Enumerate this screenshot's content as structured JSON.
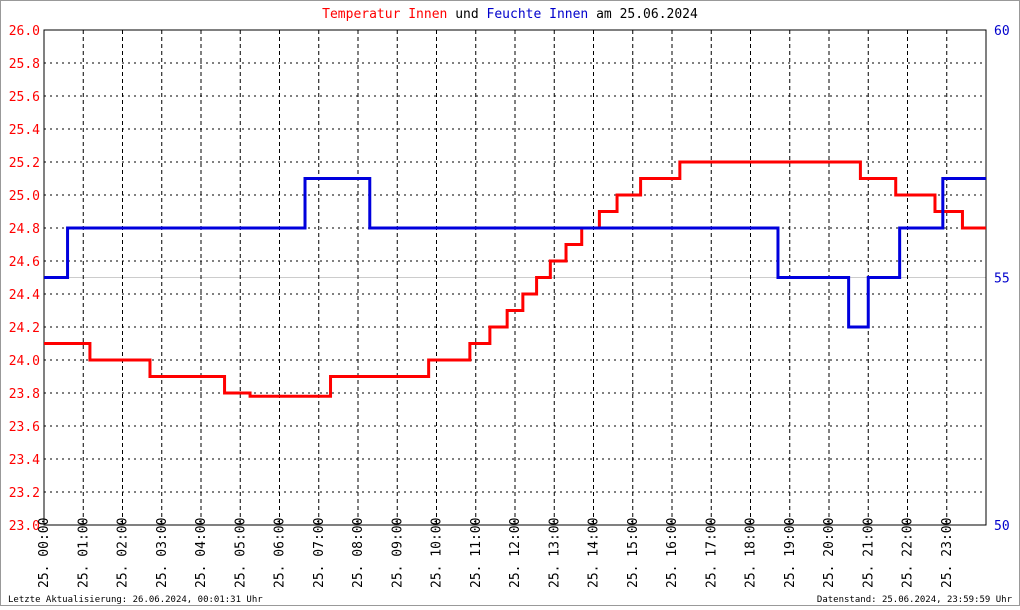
{
  "chart_data": {
    "type": "line",
    "title_parts": [
      {
        "text": "Temperatur Innen",
        "color": "#ff0000"
      },
      {
        "text": "und",
        "color": "#000000"
      },
      {
        "text": "Feuchte Innen",
        "color": "#0000cc"
      },
      {
        "text": "am 25.06.2024",
        "color": "#000000"
      }
    ],
    "footer_left": "Letzte Aktualisierung: 26.06.2024, 00:01:31 Uhr",
    "footer_right": "Datenstand: 25.06.2024, 23:59:59 Uhr",
    "xlim": [
      0,
      24
    ],
    "xticks": [
      {
        "value": 0,
        "label": "25. 00:00"
      },
      {
        "value": 1,
        "label": "25. 01:00"
      },
      {
        "value": 2,
        "label": "25. 02:00"
      },
      {
        "value": 3,
        "label": "25. 03:00"
      },
      {
        "value": 4,
        "label": "25. 04:00"
      },
      {
        "value": 5,
        "label": "25. 05:00"
      },
      {
        "value": 6,
        "label": "25. 06:00"
      },
      {
        "value": 7,
        "label": "25. 07:00"
      },
      {
        "value": 8,
        "label": "25. 08:00"
      },
      {
        "value": 9,
        "label": "25. 09:00"
      },
      {
        "value": 10,
        "label": "25. 10:00"
      },
      {
        "value": 11,
        "label": "25. 11:00"
      },
      {
        "value": 12,
        "label": "25. 12:00"
      },
      {
        "value": 13,
        "label": "25. 13:00"
      },
      {
        "value": 14,
        "label": "25. 14:00"
      },
      {
        "value": 15,
        "label": "25. 15:00"
      },
      {
        "value": 16,
        "label": "25. 16:00"
      },
      {
        "value": 17,
        "label": "25. 17:00"
      },
      {
        "value": 18,
        "label": "25. 18:00"
      },
      {
        "value": 19,
        "label": "25. 19:00"
      },
      {
        "value": 20,
        "label": "25. 20:00"
      },
      {
        "value": 21,
        "label": "25. 21:00"
      },
      {
        "value": 22,
        "label": "25. 22:00"
      },
      {
        "value": 23,
        "label": "25. 23:00"
      }
    ],
    "ylim": [
      23.0,
      26.0
    ],
    "yticks": [
      {
        "value": 23.0,
        "label": "23.0"
      },
      {
        "value": 23.2,
        "label": "23.2"
      },
      {
        "value": 23.4,
        "label": "23.4"
      },
      {
        "value": 23.6,
        "label": "23.6"
      },
      {
        "value": 23.8,
        "label": "23.8"
      },
      {
        "value": 24.0,
        "label": "24.0"
      },
      {
        "value": 24.2,
        "label": "24.2"
      },
      {
        "value": 24.4,
        "label": "24.4"
      },
      {
        "value": 24.6,
        "label": "24.6"
      },
      {
        "value": 24.8,
        "label": "24.8"
      },
      {
        "value": 25.0,
        "label": "25.0"
      },
      {
        "value": 25.2,
        "label": "25.2"
      },
      {
        "value": 25.4,
        "label": "25.4"
      },
      {
        "value": 25.6,
        "label": "25.6"
      },
      {
        "value": 25.8,
        "label": "25.8"
      },
      {
        "value": 26.0,
        "label": "26.0"
      }
    ],
    "y2lim": [
      50,
      60
    ],
    "y2ticks": [
      50,
      55,
      60
    ],
    "grid": true,
    "series": [
      {
        "name": "Temperatur Innen",
        "color": "#ff0000",
        "x": [
          0,
          1.17,
          1.17,
          2.7,
          2.7,
          4.6,
          4.6,
          5.25,
          5.25,
          7.3,
          7.3,
          9.8,
          9.8,
          10.85,
          10.85,
          11.36,
          11.36,
          11.8,
          11.8,
          12.2,
          12.2,
          12.55,
          12.55,
          12.9,
          12.9,
          13.3,
          13.3,
          13.7,
          13.7,
          14.15,
          14.15,
          14.6,
          14.6,
          15.2,
          15.2,
          16.2,
          16.2,
          20.8,
          20.8,
          21.7,
          21.7,
          22.7,
          22.7,
          23.4,
          23.4,
          24
        ],
        "values": [
          24.1,
          24.1,
          24.0,
          24.0,
          23.9,
          23.9,
          23.8,
          23.8,
          23.78,
          23.78,
          23.9,
          23.9,
          24.0,
          24.0,
          24.1,
          24.1,
          24.2,
          24.2,
          24.3,
          24.3,
          24.4,
          24.4,
          24.5,
          24.5,
          24.6,
          24.6,
          24.7,
          24.7,
          24.8,
          24.8,
          24.9,
          24.9,
          25.0,
          25.0,
          25.1,
          25.1,
          25.2,
          25.2,
          25.1,
          25.1,
          25.0,
          25.0,
          24.9,
          24.9,
          24.8,
          24.8
        ]
      },
      {
        "name": "Feuchte Innen",
        "color": "#0000dd",
        "axis": "y2",
        "x": [
          0,
          0.6,
          0.6,
          6.65,
          6.65,
          8.3,
          8.3,
          18.7,
          18.7,
          20.5,
          20.5,
          21.0,
          21.0,
          21.8,
          21.8,
          22.9,
          22.9,
          24
        ],
        "values": [
          55,
          55,
          56,
          56,
          57,
          57,
          56,
          56,
          55,
          55,
          54,
          54,
          55,
          55,
          56,
          56,
          57,
          57
        ]
      }
    ]
  }
}
